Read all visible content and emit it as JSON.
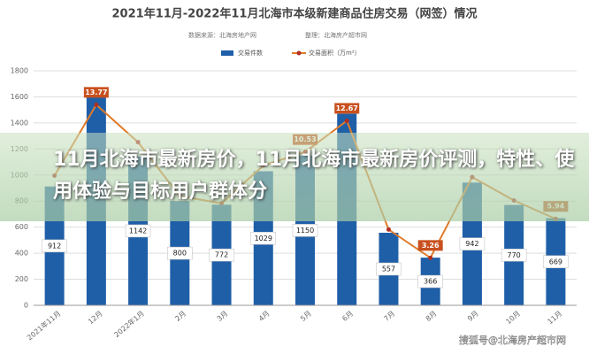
{
  "chart_data": {
    "type": "bar-line",
    "title": "2021年11月-2022年11月北海市本级新建商品住房交易（网签）情况",
    "sources": [
      "数据来源：北海房地产网",
      "整理：北海房产超市网"
    ],
    "categories": [
      "2021年11月",
      "12月",
      "2022年1月",
      "2月",
      "3月",
      "4月",
      "5月",
      "6月",
      "7月",
      "8月",
      "9月",
      "10月",
      "11月"
    ],
    "series": [
      {
        "name": "交易件数",
        "color": "#1f5fa8",
        "kind": "bar",
        "values": [
          912,
          1600,
          1142,
          800,
          772,
          1029,
          1150,
          1470,
          557,
          366,
          942,
          770,
          669
        ],
        "value_labels": [
          "912",
          null,
          "1142",
          "800",
          "772",
          "1029",
          "1150",
          null,
          "557",
          "366",
          "942",
          "770",
          "669"
        ]
      },
      {
        "name": "交易面积（万m²）",
        "color": "#e07b2a",
        "kind": "line",
        "axis": "y2",
        "values": [
          8.9,
          13.77,
          11.2,
          7.5,
          7.0,
          9.6,
          10.53,
          12.67,
          5.2,
          3.26,
          8.8,
          7.2,
          5.94
        ],
        "value_labels": [
          null,
          "13.77",
          null,
          null,
          null,
          null,
          "10.53",
          "12.67",
          null,
          "3.26",
          null,
          null,
          "5.94"
        ]
      }
    ],
    "ylim": [
      0,
      1800
    ],
    "yticks": [
      0,
      200,
      400,
      600,
      800,
      1000,
      1200,
      1400,
      1600,
      1800
    ],
    "y2lim": [
      0,
      16.1
    ],
    "grid": true
  },
  "overlay": {
    "title": "11月北海市最新房价，11月北海市最新房价评测，特性、使用体验与目标用户群体分"
  },
  "watermark": "搜狐号@北海房产超市网"
}
